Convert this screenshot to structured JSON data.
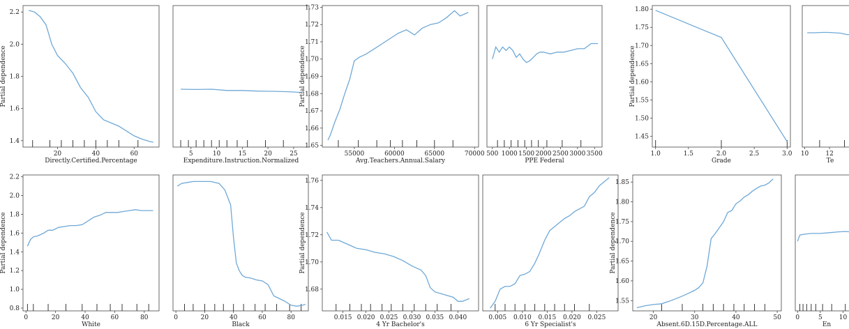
{
  "figure": {
    "line_color": "#6fa8d6",
    "frame_color": "#444444"
  },
  "chart_data": [
    {
      "type": "line",
      "xlabel": "Directly.Certified.Percentage",
      "ylabel": "Partial dependence",
      "xlim": [
        2,
        73
      ],
      "ylim": [
        1.36,
        2.24
      ],
      "xticks": [
        20,
        40,
        60
      ],
      "yticks": [
        1.4,
        1.6,
        1.8,
        2.0,
        2.2
      ],
      "rug": [
        7,
        16,
        22,
        28,
        34,
        40,
        46,
        52,
        62
      ],
      "x": [
        5,
        8,
        11,
        14,
        17,
        20,
        24,
        28,
        32,
        36,
        40,
        44,
        48,
        52,
        56,
        60,
        64,
        68,
        70
      ],
      "y": [
        2.21,
        2.2,
        2.17,
        2.12,
        2.0,
        1.93,
        1.88,
        1.82,
        1.73,
        1.67,
        1.58,
        1.53,
        1.51,
        1.49,
        1.46,
        1.43,
        1.41,
        1.395,
        1.39
      ]
    },
    {
      "type": "line",
      "xlabel": "Expenditure.Instruction.Normalized",
      "ylabel": "",
      "xlim": [
        1.5,
        28
      ],
      "ylim": [
        1.36,
        2.24
      ],
      "xticks": [
        5,
        10,
        15,
        20,
        25
      ],
      "yticks": [],
      "rug": [
        3,
        4.5,
        6,
        7.5,
        9,
        10.5,
        12,
        14,
        16,
        19.5,
        23
      ],
      "x": [
        3,
        6,
        9,
        12,
        15,
        18,
        21,
        24,
        26.5
      ],
      "y": [
        1.72,
        1.718,
        1.72,
        1.712,
        1.712,
        1.708,
        1.707,
        1.704,
        1.7
      ]
    },
    {
      "type": "line",
      "xlabel": "Avg.Teachers.Annual.Salary",
      "ylabel": "Partial dependence",
      "xlim": [
        51000,
        70500
      ],
      "ylim": [
        1.649,
        1.731
      ],
      "xticks": [
        55000,
        60000,
        65000,
        70000
      ],
      "yticks": [
        1.65,
        1.66,
        1.67,
        1.68,
        1.69,
        1.7,
        1.71,
        1.72,
        1.73
      ],
      "rug": [
        53000,
        55500,
        57800,
        59500,
        61000,
        62800,
        65000,
        67300
      ],
      "x": [
        51700,
        52000,
        52600,
        53200,
        53800,
        54400,
        55000,
        55600,
        56500,
        57500,
        58500,
        59500,
        60500,
        61500,
        62500,
        63500,
        64500,
        65500,
        66500,
        67500,
        68200,
        69200
      ],
      "y": [
        1.653,
        1.656,
        1.664,
        1.671,
        1.68,
        1.688,
        1.699,
        1.701,
        1.703,
        1.706,
        1.709,
        1.712,
        1.715,
        1.717,
        1.714,
        1.718,
        1.72,
        1.721,
        1.724,
        1.728,
        1.725,
        1.727
      ]
    },
    {
      "type": "line",
      "xlabel": "PPE Federal",
      "ylabel": "",
      "xlim": [
        340,
        3720
      ],
      "ylim": [
        1.649,
        1.731
      ],
      "xticks": [
        500,
        1000,
        1500,
        2000,
        2500,
        3000,
        3500
      ],
      "yticks": [],
      "rug": [
        650,
        850,
        1050,
        1250,
        1450,
        1650,
        1850,
        2100,
        2550,
        3100
      ],
      "x": [
        500,
        600,
        700,
        800,
        900,
        1000,
        1100,
        1200,
        1300,
        1400,
        1500,
        1600,
        1700,
        1800,
        1900,
        2000,
        2200,
        2400,
        2600,
        2800,
        3000,
        3200,
        3400,
        3600
      ],
      "y": [
        1.7,
        1.707,
        1.704,
        1.707,
        1.705,
        1.707,
        1.705,
        1.701,
        1.703,
        1.7,
        1.698,
        1.699,
        1.701,
        1.703,
        1.704,
        1.704,
        1.703,
        1.704,
        1.704,
        1.705,
        1.706,
        1.706,
        1.709,
        1.709
      ]
    },
    {
      "type": "line",
      "xlabel": "Grade",
      "ylabel": "Partial dependence",
      "xlim": [
        0.95,
        3.05
      ],
      "ylim": [
        1.42,
        1.81
      ],
      "xticks": [
        1.0,
        1.5,
        2.0,
        2.5,
        3.0
      ],
      "yticks": [
        1.45,
        1.5,
        1.55,
        1.6,
        1.65,
        1.7,
        1.75,
        1.8
      ],
      "rug": [
        1.0,
        2.0,
        3.0
      ],
      "x": [
        1.0,
        2.0,
        3.0
      ],
      "y": [
        1.797,
        1.722,
        1.435
      ]
    },
    {
      "type": "line",
      "xlabel": "Te",
      "ylabel": "",
      "xlim": [
        9.8,
        14.3
      ],
      "ylim": [
        1.42,
        1.81
      ],
      "xticks": [
        10,
        12
      ],
      "yticks": [],
      "rug": [
        11.2,
        13.2
      ],
      "x": [
        10.2,
        10.8,
        11.4,
        11.9,
        12.4,
        12.9,
        13.4,
        13.9
      ],
      "y": [
        1.735,
        1.735,
        1.736,
        1.736,
        1.735,
        1.734,
        1.73,
        1.73
      ]
    },
    {
      "type": "line",
      "xlabel": "White",
      "ylabel": "Partial dependence",
      "xlim": [
        -2,
        90
      ],
      "ylim": [
        0.77,
        2.22
      ],
      "xticks": [
        0,
        20,
        40,
        60,
        80
      ],
      "yticks": [
        0.8,
        1.0,
        1.2,
        1.4,
        1.6,
        1.8,
        2.0,
        2.2
      ],
      "rug": [
        1,
        5,
        15,
        27,
        38,
        48,
        57,
        65,
        75,
        83
      ],
      "x": [
        1,
        3,
        5,
        8,
        12,
        15,
        18,
        22,
        26,
        30,
        34,
        38,
        42,
        46,
        50,
        54,
        58,
        62,
        66,
        70,
        74,
        78,
        82,
        86
      ],
      "y": [
        1.46,
        1.53,
        1.56,
        1.57,
        1.6,
        1.63,
        1.63,
        1.66,
        1.67,
        1.68,
        1.68,
        1.69,
        1.73,
        1.77,
        1.79,
        1.82,
        1.82,
        1.82,
        1.83,
        1.84,
        1.85,
        1.84,
        1.84,
        1.84
      ]
    },
    {
      "type": "line",
      "xlabel": "Black",
      "ylabel": "",
      "xlim": [
        -2,
        92
      ],
      "ylim": [
        0.77,
        2.22
      ],
      "xticks": [
        0,
        20,
        40,
        60,
        80
      ],
      "yticks": [],
      "rug": [
        6,
        12,
        20,
        27,
        33,
        40,
        47,
        55,
        62,
        70,
        79,
        87
      ],
      "x": [
        1,
        4,
        8,
        12,
        18,
        24,
        30,
        34,
        38,
        40,
        42,
        44,
        46,
        48,
        52,
        56,
        60,
        64,
        68,
        72,
        76,
        80,
        84,
        88,
        90
      ],
      "y": [
        2.1,
        2.13,
        2.14,
        2.15,
        2.15,
        2.15,
        2.13,
        2.06,
        1.9,
        1.55,
        1.28,
        1.2,
        1.15,
        1.13,
        1.12,
        1.1,
        1.09,
        1.05,
        0.93,
        0.9,
        0.87,
        0.83,
        0.82,
        0.83,
        0.84
      ]
    },
    {
      "type": "line",
      "xlabel": "4 Yr Bachelor's",
      "ylabel": "Partial dependence",
      "xlim": [
        0.0105,
        0.0445
      ],
      "ylim": [
        1.664,
        1.764
      ],
      "xticks": [
        0.015,
        0.02,
        0.025,
        0.03,
        0.035,
        0.04
      ],
      "yticks": [
        1.68,
        1.7,
        1.72,
        1.74,
        1.76
      ],
      "rug": [
        0.0135,
        0.0165,
        0.019,
        0.021,
        0.0235,
        0.0255,
        0.028,
        0.0305,
        0.033,
        0.0355,
        0.0385
      ],
      "x": [
        0.0115,
        0.0125,
        0.014,
        0.016,
        0.018,
        0.02,
        0.022,
        0.024,
        0.026,
        0.028,
        0.03,
        0.032,
        0.033,
        0.034,
        0.035,
        0.037,
        0.039,
        0.04,
        0.041,
        0.0425
      ],
      "y": [
        1.722,
        1.716,
        1.716,
        1.713,
        1.71,
        1.709,
        1.707,
        1.706,
        1.704,
        1.701,
        1.697,
        1.694,
        1.69,
        1.681,
        1.678,
        1.676,
        1.674,
        1.671,
        1.671,
        1.673
      ]
    },
    {
      "type": "line",
      "xlabel": "6 Yr Specialist's",
      "ylabel": "",
      "xlim": [
        0.002,
        0.0293
      ],
      "ylim": [
        1.664,
        1.764
      ],
      "xticks": [
        0.005,
        0.01,
        0.015,
        0.02,
        0.025
      ],
      "yticks": [],
      "rug": [
        0.0045,
        0.0065,
        0.0085,
        0.0105,
        0.0125,
        0.0145,
        0.0165,
        0.0185,
        0.0205,
        0.0235
      ],
      "x": [
        0.0035,
        0.0045,
        0.0055,
        0.0065,
        0.0075,
        0.0085,
        0.0095,
        0.0105,
        0.0115,
        0.0125,
        0.0135,
        0.0145,
        0.0155,
        0.0165,
        0.0175,
        0.0185,
        0.0195,
        0.0205,
        0.0215,
        0.0225,
        0.0235,
        0.0245,
        0.0255,
        0.0265,
        0.0275
      ],
      "y": [
        1.666,
        1.671,
        1.68,
        1.682,
        1.682,
        1.684,
        1.69,
        1.691,
        1.693,
        1.699,
        1.707,
        1.716,
        1.723,
        1.726,
        1.729,
        1.732,
        1.734,
        1.737,
        1.739,
        1.741,
        1.748,
        1.751,
        1.756,
        1.759,
        1.762
      ]
    },
    {
      "type": "line",
      "xlabel": "Absent.6D.15D.Percentage.ALL",
      "ylabel": "Partial dependence",
      "xlim": [
        15,
        51
      ],
      "ylim": [
        1.524,
        1.868
      ],
      "xticks": [
        20,
        30,
        40,
        50
      ],
      "yticks": [
        1.55,
        1.6,
        1.65,
        1.7,
        1.75,
        1.8,
        1.85
      ],
      "rug": [
        22,
        27,
        32,
        34.5,
        37,
        39.5,
        42,
        44.5,
        47
      ],
      "x": [
        16,
        18,
        20,
        22,
        24,
        26,
        28,
        30,
        31,
        32,
        33,
        34,
        35,
        36,
        37,
        38,
        39,
        40,
        41,
        42,
        43,
        44,
        45,
        46,
        47,
        48,
        49
      ],
      "y": [
        1.532,
        1.537,
        1.54,
        1.542,
        1.549,
        1.557,
        1.566,
        1.576,
        1.583,
        1.595,
        1.637,
        1.707,
        1.72,
        1.735,
        1.75,
        1.773,
        1.778,
        1.795,
        1.802,
        1.812,
        1.818,
        1.827,
        1.834,
        1.84,
        1.842,
        1.848,
        1.858
      ]
    },
    {
      "type": "line",
      "xlabel": "En",
      "ylabel": "",
      "xlim": [
        -0.5,
        13.3
      ],
      "ylim": [
        1.524,
        1.868
      ],
      "xticks": [
        0,
        5,
        10
      ],
      "yticks": [],
      "rug": [
        0.5,
        1.2,
        2,
        3,
        4,
        5.5,
        7.5,
        10.5
      ],
      "x": [
        0,
        0.5,
        1.5,
        3,
        5,
        7,
        9,
        10.5,
        11.5,
        12.5,
        13.3
      ],
      "y": [
        1.7,
        1.716,
        1.718,
        1.72,
        1.72,
        1.722,
        1.724,
        1.725,
        1.724,
        1.721,
        1.719
      ]
    }
  ]
}
